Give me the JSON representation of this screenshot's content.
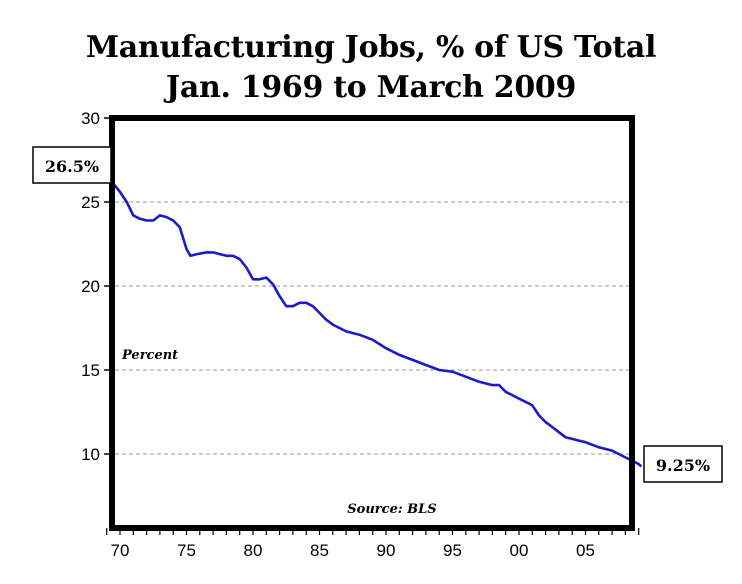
{
  "chart_data": {
    "type": "line",
    "title": "Manufacturing Jobs, % of US Total",
    "subtitle": "Jan. 1969 to March 2009",
    "xlabel": "",
    "ylabel": "Percent",
    "ylim": [
      5,
      30
    ],
    "xlim": [
      1969,
      2009.5
    ],
    "yticks": [
      10,
      15,
      20,
      25,
      30
    ],
    "xtick_labels": [
      "70",
      "75",
      "80",
      "85",
      "90",
      "95",
      "00",
      "05"
    ],
    "xtick_years": [
      1970,
      1975,
      1980,
      1985,
      1990,
      1995,
      2000,
      2005
    ],
    "grid": "horizontal dashed",
    "series": [
      {
        "name": "Manufacturing Jobs % of US Total",
        "color": "#1a1acc",
        "x": [
          1969.0,
          1969.5,
          1970.0,
          1970.5,
          1971.0,
          1971.5,
          1972.0,
          1972.5,
          1973.0,
          1973.5,
          1974.0,
          1974.5,
          1975.0,
          1975.3,
          1975.8,
          1976.5,
          1977.0,
          1977.5,
          1978.0,
          1978.5,
          1979.0,
          1979.5,
          1980.0,
          1980.5,
          1981.0,
          1981.5,
          1982.0,
          1982.5,
          1983.0,
          1983.5,
          1984.0,
          1984.5,
          1985.0,
          1985.5,
          1986.0,
          1987.0,
          1988.0,
          1989.0,
          1990.0,
          1991.0,
          1992.0,
          1993.0,
          1994.0,
          1995.0,
          1996.0,
          1997.0,
          1998.0,
          1998.5,
          1999.0,
          2000.0,
          2000.5,
          2001.0,
          2001.5,
          2002.0,
          2002.5,
          2003.0,
          2003.5,
          2004.0,
          2004.5,
          2005.0,
          2006.0,
          2007.0,
          2008.0,
          2008.5,
          2009.0,
          2009.2
        ],
        "values": [
          26.5,
          26.1,
          25.6,
          25.0,
          24.2,
          24.0,
          23.9,
          23.9,
          24.2,
          24.1,
          23.9,
          23.5,
          22.2,
          21.8,
          21.9,
          22.0,
          22.0,
          21.9,
          21.8,
          21.8,
          21.6,
          21.1,
          20.4,
          20.4,
          20.5,
          20.1,
          19.4,
          18.8,
          18.8,
          19.0,
          19.0,
          18.8,
          18.4,
          18.0,
          17.7,
          17.3,
          17.1,
          16.8,
          16.3,
          15.9,
          15.6,
          15.3,
          15.0,
          14.9,
          14.6,
          14.3,
          14.1,
          14.1,
          13.7,
          13.3,
          13.1,
          12.9,
          12.3,
          11.9,
          11.6,
          11.3,
          11.0,
          10.9,
          10.8,
          10.7,
          10.4,
          10.2,
          9.8,
          9.6,
          9.4,
          9.25
        ]
      }
    ],
    "annotations": [
      {
        "text": "26.5%",
        "x": 1969.0,
        "y": 26.5,
        "boxed": true
      },
      {
        "text": "9.25%",
        "x": 2009.2,
        "y": 9.25,
        "boxed": true
      },
      {
        "text": "Percent",
        "position": "left-middle"
      },
      {
        "text": "Source: BLS",
        "position": "bottom-center"
      }
    ]
  },
  "labels": {
    "title_line1": "Manufacturing Jobs, % of US Total",
    "title_line2": "Jan. 1969 to March 2009",
    "start_value": "26.5%",
    "end_value": "9.25%",
    "unit_label": "Percent",
    "source": "Source: BLS"
  }
}
